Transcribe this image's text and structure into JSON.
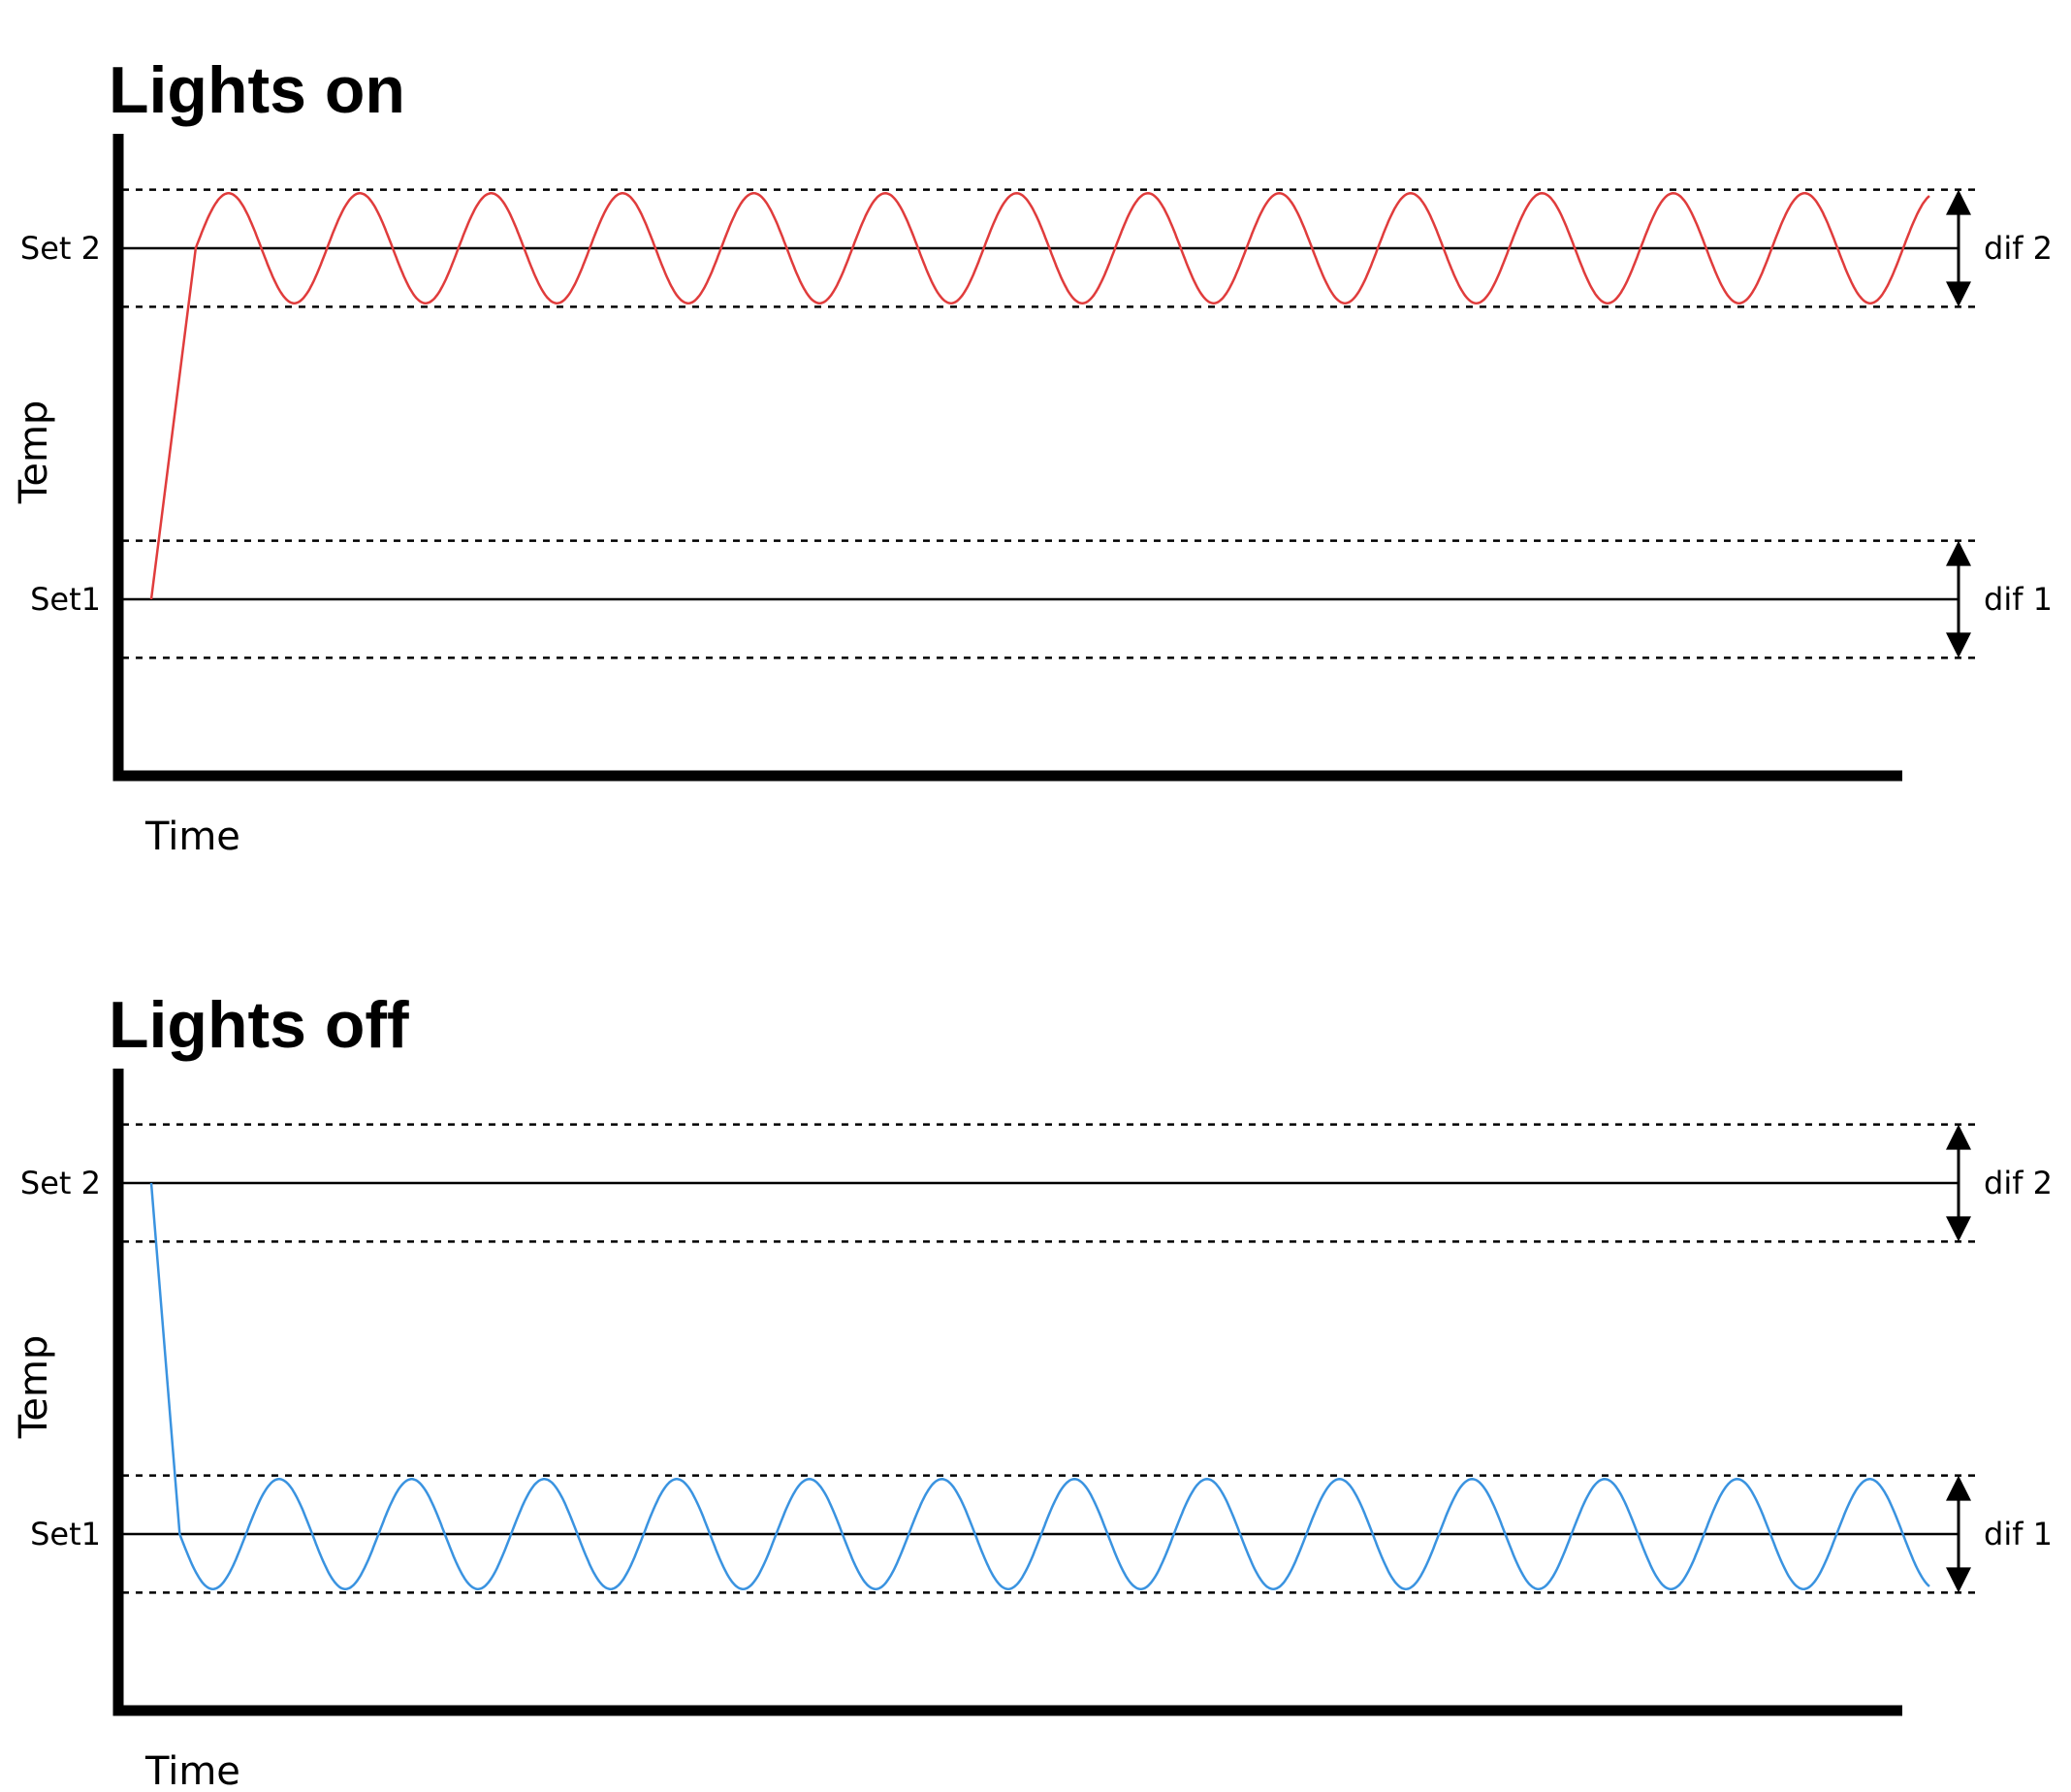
{
  "colors": {
    "lights_on": "#e03c3c",
    "lights_off": "#3a93e0",
    "ink": "#000000"
  },
  "chart_data": [
    {
      "type": "line",
      "title": "Lights on",
      "xlabel": "Time",
      "ylabel": "Temp",
      "grid": false,
      "levels": [
        {
          "label": "Set 2",
          "value": 2,
          "band_label": "dif 2",
          "band_halfwidth": 0.5
        },
        {
          "label": "Set1",
          "value": -1,
          "band_label": "dif 1",
          "band_halfwidth": 0.5
        }
      ],
      "ylim": [
        -2.5,
        3
      ],
      "xlim": [
        0,
        1
      ],
      "series": [
        {
          "behavior": "rise from Set1 to Set 2, then oscillate around Set 2 within dif 2",
          "start": -1,
          "setpoint": 2,
          "amplitude": 0.47,
          "cycles": 13.2,
          "ramp_end_x": 0.025
        }
      ]
    },
    {
      "type": "line",
      "title": "Lights off",
      "xlabel": "Time",
      "ylabel": "Temp",
      "grid": false,
      "levels": [
        {
          "label": "Set 2",
          "value": 2,
          "band_label": "dif 2",
          "band_halfwidth": 0.5
        },
        {
          "label": "Set1",
          "value": -1,
          "band_label": "dif 1",
          "band_halfwidth": 0.5
        }
      ],
      "ylim": [
        -2.5,
        3
      ],
      "xlim": [
        0,
        1
      ],
      "series": [
        {
          "behavior": "fall from Set 2 to Set1, then oscillate around Set1 within dif 1",
          "start": 2,
          "setpoint": -1,
          "amplitude": 0.47,
          "cycles": 13.2,
          "ramp_end_x": 0.016
        }
      ]
    }
  ]
}
